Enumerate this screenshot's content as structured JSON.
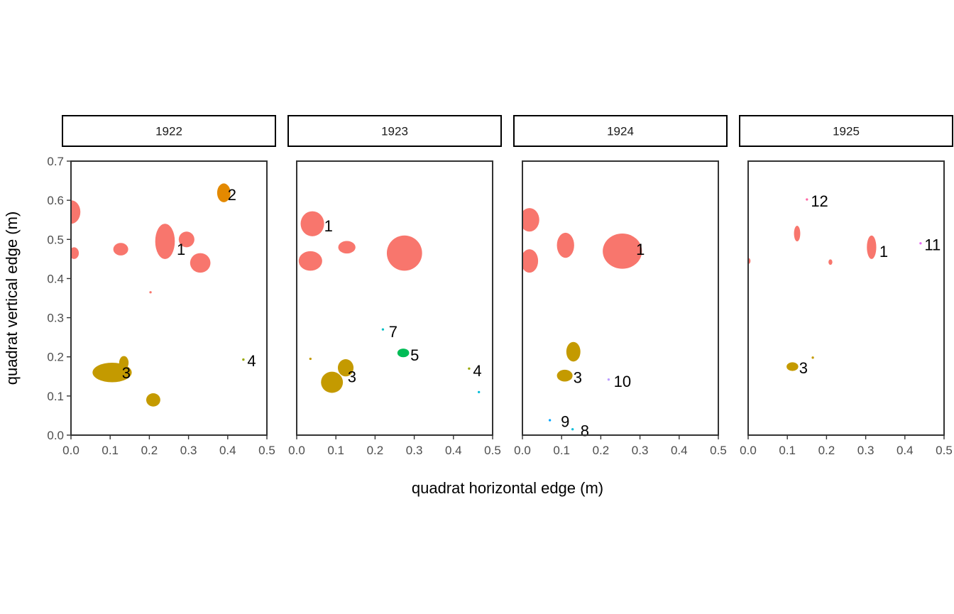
{
  "chart_data": {
    "type": "scatter",
    "xlabel": "quadrat horizontal edge (m)",
    "ylabel": "quadrat vertical edge (m)",
    "xlim": [
      0,
      0.5
    ],
    "ylim": [
      0,
      0.7
    ],
    "x_ticks": [
      "0.0",
      "0.1",
      "0.2",
      "0.3",
      "0.4",
      "0.5"
    ],
    "y_ticks": [
      "0.0",
      "0.1",
      "0.2",
      "0.3",
      "0.4",
      "0.5",
      "0.6",
      "0.7"
    ],
    "grid": false,
    "legend": "none",
    "colors": {
      "1": "#F8766D",
      "2": "#E38900",
      "3": "#C49A00",
      "4": "#99A800",
      "5": "#00BC56",
      "7": "#00BFC4",
      "8": "#00BCD8",
      "9": "#00A5FF",
      "10": "#BB9DFF",
      "11": "#E76BF3",
      "12": "#FF67A4"
    },
    "panels": [
      {
        "label": "1922",
        "polygons": [
          {
            "id": "1",
            "x": 0.0,
            "y": 0.57,
            "rx": 0.024,
            "ry": 0.03
          },
          {
            "id": "1",
            "x": 0.008,
            "y": 0.465,
            "rx": 0.012,
            "ry": 0.015
          },
          {
            "id": "1",
            "x": 0.127,
            "y": 0.475,
            "rx": 0.019,
            "ry": 0.016
          },
          {
            "id": "1",
            "x": 0.24,
            "y": 0.495,
            "rx": 0.025,
            "ry": 0.045
          },
          {
            "id": "1",
            "x": 0.295,
            "y": 0.5,
            "rx": 0.02,
            "ry": 0.02
          },
          {
            "id": "1",
            "x": 0.33,
            "y": 0.44,
            "rx": 0.026,
            "ry": 0.025
          },
          {
            "id": "1",
            "x": 0.203,
            "y": 0.365,
            "rx": 0.003,
            "ry": 0.003
          },
          {
            "id": "2",
            "x": 0.39,
            "y": 0.619,
            "rx": 0.017,
            "ry": 0.024
          },
          {
            "id": "3",
            "x": 0.105,
            "y": 0.16,
            "rx": 0.05,
            "ry": 0.025
          },
          {
            "id": "3",
            "x": 0.135,
            "y": 0.185,
            "rx": 0.012,
            "ry": 0.017
          },
          {
            "id": "3",
            "x": 0.21,
            "y": 0.09,
            "rx": 0.018,
            "ry": 0.017
          },
          {
            "id": "4",
            "x": 0.44,
            "y": 0.193,
            "rx": 0.003,
            "ry": 0.003
          }
        ],
        "labels": [
          {
            "id": "1",
            "x": 0.27,
            "y": 0.475
          },
          {
            "id": "2",
            "x": 0.4,
            "y": 0.615
          },
          {
            "id": "3",
            "x": 0.13,
            "y": 0.16
          },
          {
            "id": "4",
            "x": 0.45,
            "y": 0.19
          }
        ]
      },
      {
        "label": "1923",
        "polygons": [
          {
            "id": "1",
            "x": 0.04,
            "y": 0.54,
            "rx": 0.03,
            "ry": 0.032
          },
          {
            "id": "1",
            "x": 0.035,
            "y": 0.445,
            "rx": 0.03,
            "ry": 0.025
          },
          {
            "id": "1",
            "x": 0.128,
            "y": 0.48,
            "rx": 0.022,
            "ry": 0.016
          },
          {
            "id": "1",
            "x": 0.275,
            "y": 0.465,
            "rx": 0.045,
            "ry": 0.045
          },
          {
            "id": "3",
            "x": 0.09,
            "y": 0.135,
            "rx": 0.028,
            "ry": 0.027
          },
          {
            "id": "3",
            "x": 0.125,
            "y": 0.172,
            "rx": 0.02,
            "ry": 0.022
          },
          {
            "id": "3",
            "x": 0.035,
            "y": 0.195,
            "rx": 0.003,
            "ry": 0.003
          },
          {
            "id": "5",
            "x": 0.272,
            "y": 0.21,
            "rx": 0.015,
            "ry": 0.011
          },
          {
            "id": "7",
            "x": 0.22,
            "y": 0.27,
            "rx": 0.003,
            "ry": 0.003
          },
          {
            "id": "4",
            "x": 0.44,
            "y": 0.17,
            "rx": 0.003,
            "ry": 0.003
          },
          {
            "id": "8",
            "x": 0.465,
            "y": 0.11,
            "rx": 0.003,
            "ry": 0.003
          }
        ],
        "labels": [
          {
            "id": "1",
            "x": 0.07,
            "y": 0.535
          },
          {
            "id": "3",
            "x": 0.13,
            "y": 0.15
          },
          {
            "id": "5",
            "x": 0.29,
            "y": 0.205
          },
          {
            "id": "7",
            "x": 0.235,
            "y": 0.265
          },
          {
            "id": "4",
            "x": 0.45,
            "y": 0.165
          }
        ]
      },
      {
        "label": "1924",
        "polygons": [
          {
            "id": "1",
            "x": 0.018,
            "y": 0.55,
            "rx": 0.025,
            "ry": 0.03
          },
          {
            "id": "1",
            "x": 0.018,
            "y": 0.445,
            "rx": 0.022,
            "ry": 0.03
          },
          {
            "id": "1",
            "x": 0.11,
            "y": 0.485,
            "rx": 0.022,
            "ry": 0.032
          },
          {
            "id": "1",
            "x": 0.255,
            "y": 0.47,
            "rx": 0.05,
            "ry": 0.045
          },
          {
            "id": "3",
            "x": 0.13,
            "y": 0.213,
            "rx": 0.018,
            "ry": 0.025
          },
          {
            "id": "3",
            "x": 0.108,
            "y": 0.152,
            "rx": 0.02,
            "ry": 0.015
          },
          {
            "id": "9",
            "x": 0.07,
            "y": 0.038,
            "rx": 0.003,
            "ry": 0.003
          },
          {
            "id": "8",
            "x": 0.128,
            "y": 0.015,
            "rx": 0.003,
            "ry": 0.003
          },
          {
            "id": "10",
            "x": 0.22,
            "y": 0.142,
            "rx": 0.003,
            "ry": 0.003
          }
        ],
        "labels": [
          {
            "id": "1",
            "x": 0.29,
            "y": 0.475
          },
          {
            "id": "3",
            "x": 0.13,
            "y": 0.148
          },
          {
            "id": "9",
            "x": 0.098,
            "y": 0.035
          },
          {
            "id": "8",
            "x": 0.148,
            "y": 0.012
          },
          {
            "id": "10",
            "x": 0.233,
            "y": 0.138
          }
        ]
      },
      {
        "label": "1925",
        "polygons": [
          {
            "id": "1",
            "x": 0.0,
            "y": 0.445,
            "rx": 0.006,
            "ry": 0.008
          },
          {
            "id": "1",
            "x": 0.125,
            "y": 0.515,
            "rx": 0.008,
            "ry": 0.02
          },
          {
            "id": "1",
            "x": 0.21,
            "y": 0.442,
            "rx": 0.005,
            "ry": 0.007
          },
          {
            "id": "1",
            "x": 0.315,
            "y": 0.48,
            "rx": 0.012,
            "ry": 0.03
          },
          {
            "id": "3",
            "x": 0.113,
            "y": 0.175,
            "rx": 0.015,
            "ry": 0.011
          },
          {
            "id": "3",
            "x": 0.165,
            "y": 0.198,
            "rx": 0.003,
            "ry": 0.003
          },
          {
            "id": "11",
            "x": 0.44,
            "y": 0.49,
            "rx": 0.003,
            "ry": 0.003
          },
          {
            "id": "12",
            "x": 0.15,
            "y": 0.602,
            "rx": 0.003,
            "ry": 0.003
          }
        ],
        "labels": [
          {
            "id": "1",
            "x": 0.335,
            "y": 0.47
          },
          {
            "id": "3",
            "x": 0.13,
            "y": 0.172
          },
          {
            "id": "11",
            "x": 0.45,
            "y": 0.487
          },
          {
            "id": "12",
            "x": 0.16,
            "y": 0.598
          }
        ]
      }
    ]
  }
}
